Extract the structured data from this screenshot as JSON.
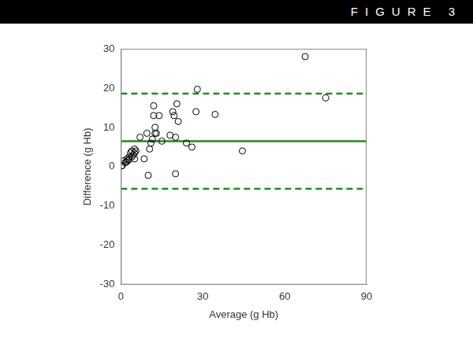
{
  "chart_data": {
    "type": "scatter",
    "title": "FIGURE 3",
    "x_label": "Average (g Hb)",
    "y_label": "Difference (g Hb)",
    "xlim": [
      0,
      90
    ],
    "xticks": [
      0,
      30,
      60,
      90
    ],
    "ylim": [
      -30,
      30
    ],
    "yticks": [
      -30,
      -20,
      -10,
      0,
      10,
      20,
      30
    ],
    "grid": false,
    "series": [
      {
        "type": "scatter",
        "marker": "circle",
        "color": "#000000",
        "x": [
          0.3,
          0.5,
          1,
          1.5,
          2,
          2.2,
          2.5,
          3,
          3,
          3.5,
          4,
          4,
          4.5,
          5,
          5,
          5.5,
          5,
          7,
          8.5,
          9.5,
          10,
          10.5,
          11,
          11.5,
          12,
          12,
          12.5,
          12.5,
          13,
          14,
          15,
          18,
          19,
          19.5,
          20,
          20,
          20.5,
          21,
          24,
          26,
          27.5,
          28,
          34.5,
          44.5,
          67.5,
          75
        ],
        "values": [
          0.2,
          0.3,
          1.5,
          1,
          1.2,
          2,
          1.5,
          2.5,
          1.8,
          3.5,
          4,
          2.5,
          3,
          4.5,
          3.5,
          4,
          2,
          7.5,
          2,
          8.5,
          -2.2,
          4.5,
          6,
          7,
          13,
          15.5,
          8.5,
          10,
          8.5,
          13,
          6.5,
          8,
          14,
          13,
          -1.8,
          7.5,
          16,
          11.5,
          6,
          5,
          14,
          19.7,
          13.3,
          4,
          28,
          17.5
        ]
      },
      {
        "type": "line",
        "line_style": "solid",
        "color": "#1e8c1e",
        "x": [
          0,
          90
        ],
        "values": [
          6.5,
          6.5
        ]
      },
      {
        "type": "line",
        "line_style": "dashed",
        "color": "#1e8c1e",
        "x": [
          0,
          90
        ],
        "values": [
          18.6,
          18.6
        ]
      },
      {
        "type": "line",
        "line_style": "dashed",
        "color": "#1e8c1e",
        "x": [
          0,
          90
        ],
        "values": [
          -5.6,
          -5.6
        ]
      }
    ]
  }
}
